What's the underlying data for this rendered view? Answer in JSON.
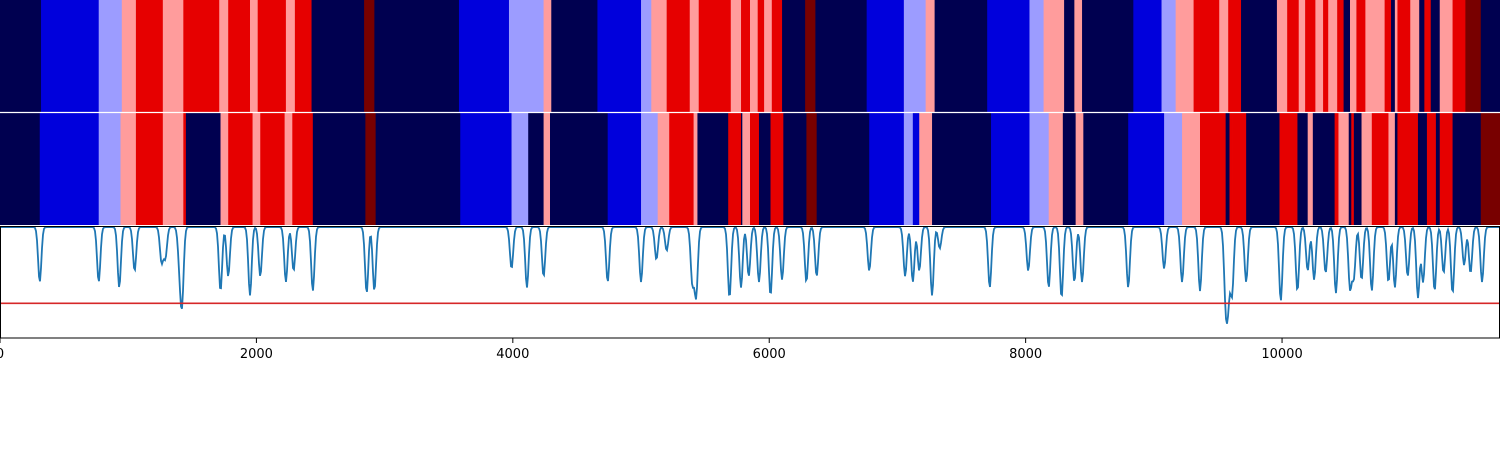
{
  "chart_data": [
    {
      "type": "heatmap",
      "row": "top",
      "xlim": [
        0,
        11700
      ],
      "palette": {
        "0": "#000050",
        "1": "#0000dc",
        "2": "#9c9cff",
        "3": "#ff9c9c",
        "4": "#e60000",
        "5": "#780000"
      },
      "segments": [
        [
          0,
          320,
          0
        ],
        [
          320,
          770,
          1
        ],
        [
          770,
          950,
          2
        ],
        [
          950,
          1060,
          3
        ],
        [
          1060,
          1270,
          4
        ],
        [
          1270,
          1430,
          3
        ],
        [
          1430,
          1710,
          4
        ],
        [
          1710,
          1780,
          3
        ],
        [
          1780,
          1950,
          4
        ],
        [
          1950,
          2010,
          3
        ],
        [
          2010,
          2230,
          4
        ],
        [
          2230,
          2300,
          3
        ],
        [
          2300,
          2430,
          4
        ],
        [
          2430,
          2840,
          0
        ],
        [
          2840,
          2920,
          5
        ],
        [
          2920,
          3580,
          0
        ],
        [
          3580,
          3970,
          1
        ],
        [
          3970,
          4240,
          2
        ],
        [
          4240,
          4300,
          3
        ],
        [
          4300,
          4660,
          0
        ],
        [
          4660,
          5000,
          1
        ],
        [
          5000,
          5080,
          2
        ],
        [
          5080,
          5200,
          3
        ],
        [
          5200,
          5380,
          4
        ],
        [
          5380,
          5450,
          3
        ],
        [
          5450,
          5700,
          4
        ],
        [
          5700,
          5780,
          3
        ],
        [
          5780,
          5850,
          4
        ],
        [
          5850,
          5910,
          3
        ],
        [
          5910,
          5960,
          4
        ],
        [
          5960,
          6020,
          3
        ],
        [
          6020,
          6100,
          4
        ],
        [
          6100,
          6280,
          0
        ],
        [
          6280,
          6360,
          5
        ],
        [
          6360,
          6760,
          0
        ],
        [
          6760,
          7050,
          1
        ],
        [
          7050,
          7220,
          2
        ],
        [
          7220,
          7290,
          3
        ],
        [
          7290,
          7700,
          0
        ],
        [
          7700,
          8030,
          1
        ],
        [
          8030,
          8140,
          2
        ],
        [
          8140,
          8300,
          3
        ],
        [
          8300,
          8380,
          0
        ],
        [
          8380,
          8440,
          3
        ],
        [
          8440,
          8840,
          0
        ],
        [
          8840,
          9060,
          1
        ],
        [
          9060,
          9170,
          2
        ],
        [
          9170,
          9310,
          3
        ],
        [
          9310,
          9510,
          4
        ],
        [
          9510,
          9580,
          3
        ],
        [
          9580,
          9680,
          4
        ],
        [
          9680,
          9960,
          0
        ],
        [
          9960,
          10040,
          3
        ],
        [
          10040,
          10130,
          4
        ],
        [
          10130,
          10180,
          3
        ],
        [
          10180,
          10260,
          4
        ],
        [
          10260,
          10320,
          3
        ],
        [
          10320,
          10360,
          4
        ],
        [
          10360,
          10430,
          3
        ],
        [
          10430,
          10480,
          4
        ],
        [
          10480,
          10530,
          0
        ],
        [
          10530,
          10580,
          3
        ],
        [
          10580,
          10650,
          4
        ],
        [
          10650,
          10800,
          3
        ],
        [
          10800,
          10850,
          4
        ],
        [
          10850,
          10880,
          0
        ],
        [
          10880,
          10900,
          3
        ],
        [
          10900,
          11000,
          4
        ],
        [
          11000,
          11070,
          3
        ],
        [
          11070,
          11110,
          0
        ],
        [
          11110,
          11160,
          4
        ],
        [
          11160,
          11230,
          0
        ],
        [
          11230,
          11330,
          3
        ],
        [
          11330,
          11430,
          4
        ],
        [
          11430,
          11550,
          5
        ],
        [
          11550,
          11700,
          0
        ]
      ]
    },
    {
      "type": "heatmap",
      "row": "middle",
      "xlim": [
        0,
        11700
      ],
      "segments": [
        [
          0,
          310,
          0
        ],
        [
          310,
          770,
          1
        ],
        [
          770,
          940,
          2
        ],
        [
          940,
          1060,
          3
        ],
        [
          1060,
          1270,
          4
        ],
        [
          1270,
          1430,
          3
        ],
        [
          1430,
          1450,
          4
        ],
        [
          1450,
          1720,
          0
        ],
        [
          1720,
          1780,
          3
        ],
        [
          1780,
          1970,
          4
        ],
        [
          1970,
          2030,
          3
        ],
        [
          2030,
          2220,
          4
        ],
        [
          2220,
          2280,
          3
        ],
        [
          2280,
          2440,
          4
        ],
        [
          2440,
          2850,
          0
        ],
        [
          2850,
          2930,
          5
        ],
        [
          2930,
          3590,
          0
        ],
        [
          3590,
          3990,
          1
        ],
        [
          3990,
          4120,
          2
        ],
        [
          4120,
          4240,
          0
        ],
        [
          4240,
          4290,
          3
        ],
        [
          4290,
          4740,
          0
        ],
        [
          4740,
          5000,
          1
        ],
        [
          5000,
          5130,
          2
        ],
        [
          5130,
          5220,
          3
        ],
        [
          5220,
          5410,
          4
        ],
        [
          5410,
          5440,
          3
        ],
        [
          5440,
          5680,
          0
        ],
        [
          5680,
          5700,
          4
        ],
        [
          5700,
          5780,
          4
        ],
        [
          5780,
          5790,
          0
        ],
        [
          5790,
          5850,
          3
        ],
        [
          5850,
          5920,
          4
        ],
        [
          5920,
          6010,
          0
        ],
        [
          6010,
          6110,
          4
        ],
        [
          6110,
          6290,
          0
        ],
        [
          6290,
          6370,
          5
        ],
        [
          6370,
          6780,
          0
        ],
        [
          6780,
          7050,
          1
        ],
        [
          7050,
          7120,
          2
        ],
        [
          7120,
          7170,
          1
        ],
        [
          7170,
          7270,
          3
        ],
        [
          7270,
          7730,
          0
        ],
        [
          7730,
          8030,
          1
        ],
        [
          8030,
          8180,
          2
        ],
        [
          8180,
          8290,
          3
        ],
        [
          8290,
          8390,
          0
        ],
        [
          8390,
          8450,
          3
        ],
        [
          8450,
          8800,
          0
        ],
        [
          8800,
          9080,
          1
        ],
        [
          9080,
          9220,
          2
        ],
        [
          9220,
          9360,
          3
        ],
        [
          9360,
          9560,
          4
        ],
        [
          9560,
          9590,
          0
        ],
        [
          9590,
          9610,
          4
        ],
        [
          9610,
          9720,
          4
        ],
        [
          9720,
          9980,
          0
        ],
        [
          9980,
          10120,
          4
        ],
        [
          10120,
          10200,
          0
        ],
        [
          10200,
          10240,
          3
        ],
        [
          10240,
          10410,
          0
        ],
        [
          10410,
          10440,
          4
        ],
        [
          10440,
          10520,
          3
        ],
        [
          10520,
          10540,
          0
        ],
        [
          10540,
          10560,
          4
        ],
        [
          10560,
          10620,
          0
        ],
        [
          10620,
          10700,
          3
        ],
        [
          10700,
          10830,
          4
        ],
        [
          10830,
          10880,
          3
        ],
        [
          10880,
          10900,
          0
        ],
        [
          10900,
          11060,
          4
        ],
        [
          11060,
          11130,
          0
        ],
        [
          11130,
          11200,
          4
        ],
        [
          11200,
          11230,
          0
        ],
        [
          11230,
          11330,
          4
        ],
        [
          11330,
          11430,
          0
        ],
        [
          11430,
          11550,
          0
        ],
        [
          11550,
          11700,
          5
        ]
      ]
    },
    {
      "type": "line",
      "row": "bottom",
      "xlim": [
        0,
        11700
      ],
      "ylim": [
        0,
        1
      ],
      "grid": false,
      "line_color": "#1f77b4",
      "threshold": {
        "value": 0.31,
        "color": "#d62728"
      },
      "baseline": 0.99,
      "dips": [
        [
          310,
          0.5
        ],
        [
          770,
          0.5
        ],
        [
          930,
          0.45
        ],
        [
          1050,
          0.6
        ],
        [
          1260,
          0.68
        ],
        [
          1290,
          0.72
        ],
        [
          1400,
          0.7
        ],
        [
          1420,
          0.35
        ],
        [
          1720,
          0.42
        ],
        [
          1780,
          0.55
        ],
        [
          1950,
          0.38
        ],
        [
          2030,
          0.55
        ],
        [
          2230,
          0.5
        ],
        [
          2290,
          0.6
        ],
        [
          2440,
          0.42
        ],
        [
          2860,
          0.4
        ],
        [
          2920,
          0.42
        ],
        [
          3990,
          0.62
        ],
        [
          4110,
          0.45
        ],
        [
          4240,
          0.55
        ],
        [
          4740,
          0.5
        ],
        [
          5000,
          0.5
        ],
        [
          5120,
          0.7
        ],
        [
          5200,
          0.78
        ],
        [
          5400,
          0.5
        ],
        [
          5430,
          0.38
        ],
        [
          5690,
          0.36
        ],
        [
          5780,
          0.45
        ],
        [
          5840,
          0.55
        ],
        [
          5920,
          0.5
        ],
        [
          6010,
          0.38
        ],
        [
          6100,
          0.52
        ],
        [
          6290,
          0.5
        ],
        [
          6370,
          0.55
        ],
        [
          6780,
          0.6
        ],
        [
          7060,
          0.55
        ],
        [
          7120,
          0.5
        ],
        [
          7170,
          0.6
        ],
        [
          7270,
          0.38
        ],
        [
          7330,
          0.8
        ],
        [
          7720,
          0.45
        ],
        [
          8020,
          0.6
        ],
        [
          8180,
          0.45
        ],
        [
          8280,
          0.36
        ],
        [
          8380,
          0.5
        ],
        [
          8440,
          0.5
        ],
        [
          8800,
          0.45
        ],
        [
          9080,
          0.62
        ],
        [
          9220,
          0.5
        ],
        [
          9360,
          0.42
        ],
        [
          9560,
          0.38
        ],
        [
          9580,
          0.43
        ],
        [
          9610,
          0.4
        ],
        [
          9720,
          0.5
        ],
        [
          9990,
          0.33
        ],
        [
          10120,
          0.42
        ],
        [
          10200,
          0.6
        ],
        [
          10250,
          0.52
        ],
        [
          10340,
          0.58
        ],
        [
          10420,
          0.4
        ],
        [
          10530,
          0.45
        ],
        [
          10560,
          0.55
        ],
        [
          10620,
          0.52
        ],
        [
          10700,
          0.42
        ],
        [
          10830,
          0.5
        ],
        [
          10880,
          0.45
        ],
        [
          10980,
          0.55
        ],
        [
          11060,
          0.36
        ],
        [
          11100,
          0.5
        ],
        [
          11190,
          0.42
        ],
        [
          11260,
          0.58
        ],
        [
          11330,
          0.4
        ],
        [
          11420,
          0.65
        ],
        [
          11470,
          0.58
        ],
        [
          11560,
          0.5
        ]
      ]
    }
  ],
  "x_axis": {
    "xlim": [
      0,
      11700
    ],
    "ticks": [
      {
        "value": 0,
        "label": "0"
      },
      {
        "value": 2000,
        "label": "2000"
      },
      {
        "value": 4000,
        "label": "4000"
      },
      {
        "value": 6000,
        "label": "6000"
      },
      {
        "value": 8000,
        "label": "8000"
      },
      {
        "value": 10000,
        "label": "10000"
      }
    ]
  }
}
